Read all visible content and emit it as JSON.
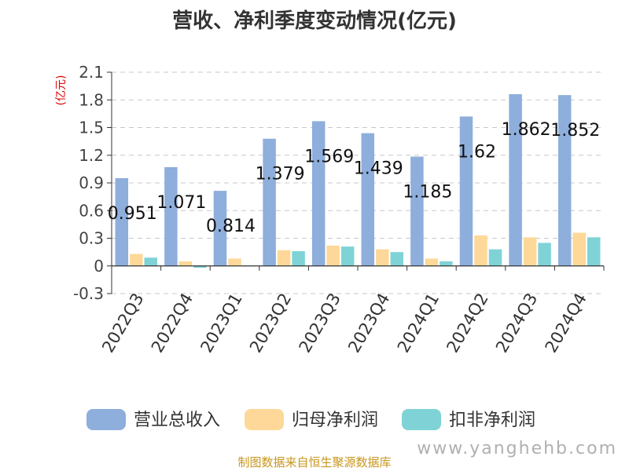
{
  "chart_data": {
    "type": "bar",
    "title": "营收、净利季度变动情况(亿元)",
    "unit_label": "(亿元)",
    "categories": [
      "2022Q3",
      "2022Q4",
      "2023Q1",
      "2023Q2",
      "2023Q3",
      "2023Q4",
      "2024Q1",
      "2024Q2",
      "2024Q3",
      "2024Q4"
    ],
    "series": [
      {
        "name": "营业总收入",
        "color": "#8eaedc",
        "values": [
          0.951,
          1.071,
          0.814,
          1.379,
          1.569,
          1.439,
          1.185,
          1.62,
          1.862,
          1.852
        ]
      },
      {
        "name": "归母净利润",
        "color": "#fdd898",
        "values": [
          0.13,
          0.05,
          0.08,
          0.17,
          0.22,
          0.18,
          0.08,
          0.33,
          0.31,
          0.36
        ]
      },
      {
        "name": "扣非净利润",
        "color": "#7fd3d6",
        "values": [
          0.09,
          -0.02,
          0.0,
          0.16,
          0.21,
          0.15,
          0.05,
          0.18,
          0.25,
          0.31
        ]
      }
    ],
    "data_labels": [
      "0.951",
      "1.071",
      "0.814",
      "1.379",
      "1.569",
      "1.439",
      "1.185",
      "1.62",
      "1.862",
      "1.852"
    ],
    "yticks": [
      "-0.3",
      "0",
      "0.3",
      "0.6",
      "0.9",
      "1.2",
      "1.5",
      "1.8",
      "2.1"
    ],
    "ylim": [
      -0.3,
      2.1
    ],
    "grid": "horizontal dashed",
    "legend_position": "bottom"
  },
  "footer": {
    "source_text": "制图数据来自恒生聚源数据库",
    "watermark": "www.yanghehb.com"
  }
}
